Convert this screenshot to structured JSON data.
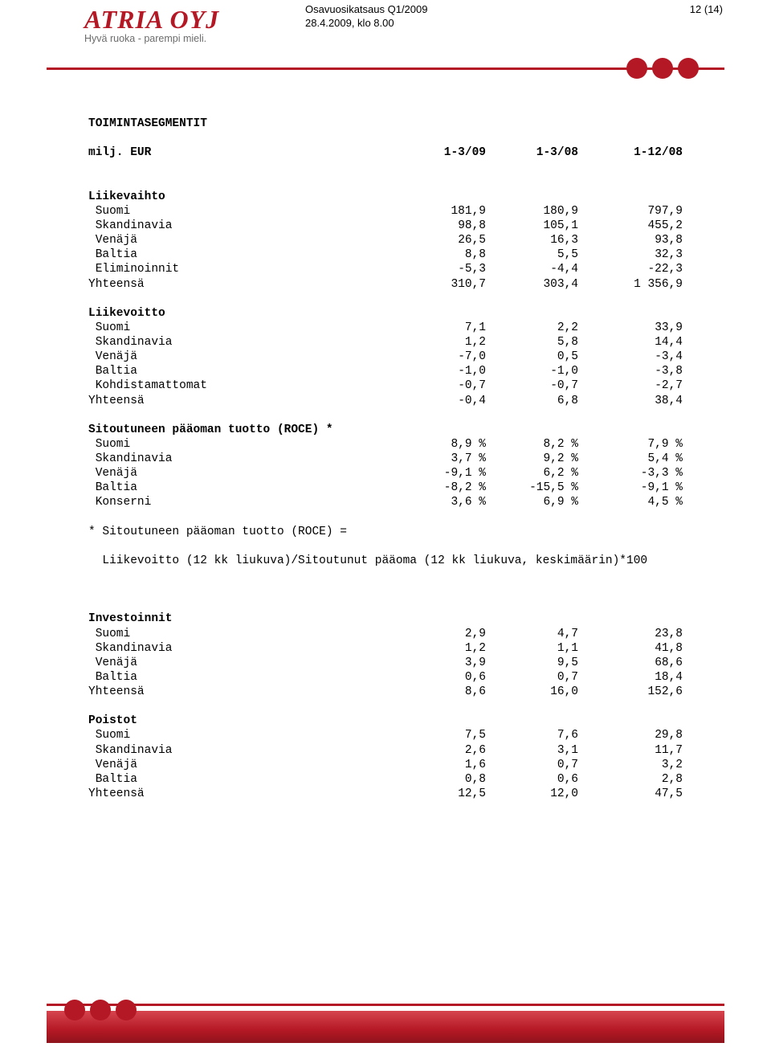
{
  "page": {
    "doc_title": "Osavuosikatsaus Q1/2009",
    "page_num": "12 (14)",
    "date_line": "28.4.2009, klo 8.00"
  },
  "brand": {
    "name": "ATRIA OYJ",
    "tagline": "Hyvä ruoka - parempi mieli.",
    "brand_color": "#b41824",
    "tagline_color": "#6c6c6c"
  },
  "table": {
    "section_title": "TOIMINTASEGMENTIT",
    "header_row": {
      "label": "milj. EUR",
      "c1": "1-3/09",
      "c2": "1-3/08",
      "c3": "1-12/08"
    },
    "groups": [
      {
        "title": "Liikevaihto",
        "rows": [
          {
            "label": " Suomi",
            "c1": "181,9",
            "c2": "180,9",
            "c3": "797,9"
          },
          {
            "label": " Skandinavia",
            "c1": "98,8",
            "c2": "105,1",
            "c3": "455,2"
          },
          {
            "label": " Venäjä",
            "c1": "26,5",
            "c2": "16,3",
            "c3": "93,8"
          },
          {
            "label": " Baltia",
            "c1": "8,8",
            "c2": "5,5",
            "c3": "32,3"
          },
          {
            "label": " Eliminoinnit",
            "c1": "-5,3",
            "c2": "-4,4",
            "c3": "-22,3"
          },
          {
            "label": "Yhteensä",
            "c1": "310,7",
            "c2": "303,4",
            "c3": "1 356,9"
          }
        ]
      },
      {
        "title": "Liikevoitto",
        "rows": [
          {
            "label": " Suomi",
            "c1": "7,1",
            "c2": "2,2",
            "c3": "33,9"
          },
          {
            "label": " Skandinavia",
            "c1": "1,2",
            "c2": "5,8",
            "c3": "14,4"
          },
          {
            "label": " Venäjä",
            "c1": "-7,0",
            "c2": "0,5",
            "c3": "-3,4"
          },
          {
            "label": " Baltia",
            "c1": "-1,0",
            "c2": "-1,0",
            "c3": "-3,8"
          },
          {
            "label": " Kohdistamattomat",
            "c1": "-0,7",
            "c2": "-0,7",
            "c3": "-2,7"
          },
          {
            "label": "Yhteensä",
            "c1": "-0,4",
            "c2": "6,8",
            "c3": "38,4"
          }
        ]
      },
      {
        "title": "Sitoutuneen pääoman tuotto (ROCE) *",
        "rows": [
          {
            "label": " Suomi",
            "c1": "8,9 %",
            "c2": "8,2 %",
            "c3": "7,9 %"
          },
          {
            "label": " Skandinavia",
            "c1": "3,7 %",
            "c2": "9,2 %",
            "c3": "5,4 %"
          },
          {
            "label": " Venäjä",
            "c1": "-9,1 %",
            "c2": "6,2 %",
            "c3": "-3,3 %"
          },
          {
            "label": " Baltia",
            "c1": "-8,2 %",
            "c2": "-15,5 %",
            "c3": "-9,1 %"
          },
          {
            "label": " Konserni",
            "c1": "3,6 %",
            "c2": "6,9 %",
            "c3": "4,5 %"
          }
        ]
      }
    ],
    "footnote": {
      "l1": "* Sitoutuneen pääoman tuotto (ROCE) =",
      "l2": "  Liikevoitto (12 kk liukuva)/Sitoutunut pääoma (12 kk liukuva, keskimäärin)*100"
    },
    "groups2": [
      {
        "title": "Investoinnit",
        "rows": [
          {
            "label": " Suomi",
            "c1": "2,9",
            "c2": "4,7",
            "c3": "23,8"
          },
          {
            "label": " Skandinavia",
            "c1": "1,2",
            "c2": "1,1",
            "c3": "41,8"
          },
          {
            "label": " Venäjä",
            "c1": "3,9",
            "c2": "9,5",
            "c3": "68,6"
          },
          {
            "label": " Baltia",
            "c1": "0,6",
            "c2": "0,7",
            "c3": "18,4"
          },
          {
            "label": "Yhteensä",
            "c1": "8,6",
            "c2": "16,0",
            "c3": "152,6"
          }
        ]
      },
      {
        "title": "Poistot",
        "rows": [
          {
            "label": " Suomi",
            "c1": "7,5",
            "c2": "7,6",
            "c3": "29,8"
          },
          {
            "label": " Skandinavia",
            "c1": "2,6",
            "c2": "3,1",
            "c3": "11,7"
          },
          {
            "label": " Venäjä",
            "c1": "1,6",
            "c2": "0,7",
            "c3": "3,2"
          },
          {
            "label": " Baltia",
            "c1": "0,8",
            "c2": "0,6",
            "c3": "2,8"
          },
          {
            "label": "Yhteensä",
            "c1": "12,5",
            "c2": "12,0",
            "c3": "47,5"
          }
        ]
      }
    ]
  }
}
